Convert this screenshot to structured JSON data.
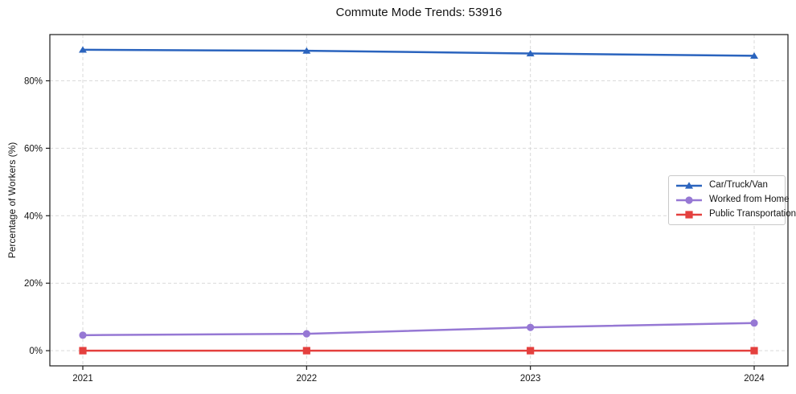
{
  "title": "Commute Mode Trends: 53916",
  "chart_data": {
    "type": "line",
    "title": "Commute Mode Trends: 53916",
    "xlabel": "",
    "ylabel": "Percentage of Workers (%)",
    "x": [
      "2021",
      "2022",
      "2023",
      "2024"
    ],
    "yticks": [
      0,
      20,
      40,
      60,
      80
    ],
    "ytick_suffix": "%",
    "ylim": [
      -4.5,
      93.7
    ],
    "grid": true,
    "grid_style": "dashed",
    "grid_color": "#d9d9d9",
    "axis_color": "#1c1c1c",
    "text_color": "#141414",
    "legend_position": "right-center",
    "series": [
      {
        "name": "Car/Truck/Van",
        "color": "#2b64be",
        "marker": "triangle",
        "values": [
          89.2,
          88.9,
          88.1,
          87.4
        ]
      },
      {
        "name": "Worked from Home",
        "color": "#9678d4",
        "marker": "circle",
        "values": [
          4.6,
          5.0,
          6.9,
          8.2
        ]
      },
      {
        "name": "Public Transportation",
        "color": "#e4403e",
        "marker": "square",
        "values": [
          0.0,
          0.0,
          0.0,
          0.0
        ]
      }
    ]
  }
}
